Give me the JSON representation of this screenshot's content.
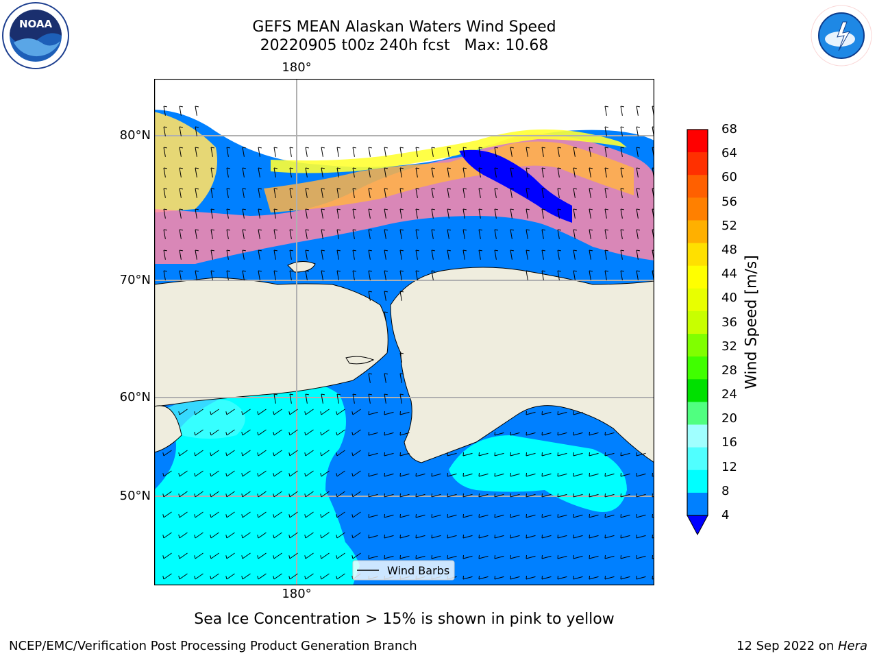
{
  "title": {
    "line1": "GEFS MEAN Alaskan Waters Wind Speed",
    "line2": "20220905 t00z 240h fcst   Max: 10.68"
  },
  "map": {
    "lon_labels": [
      "180°",
      "180°"
    ],
    "lat_labels": [
      "80°N",
      "70°N",
      "60°N",
      "50°N"
    ],
    "legend_label": "Wind Barbs",
    "colors": {
      "land": "#efedde",
      "ocean_4_8": "#0080ff",
      "ocean_8_12": "#00ffff",
      "ocean_12_16": "#4dffff",
      "below_4": "#0000ff",
      "ice_low": "#ff66cc",
      "ice_mid": "#ffb347",
      "ice_high": "#ffff33",
      "grid": "#b0b0b0"
    }
  },
  "colorbar": {
    "label": "Wind Speed [m/s]",
    "ticks": [
      "68",
      "64",
      "60",
      "56",
      "52",
      "48",
      "44",
      "40",
      "36",
      "32",
      "28",
      "24",
      "20",
      "16",
      "12",
      "8",
      "4"
    ],
    "colors": [
      "#ff0000",
      "#ff3000",
      "#ff6000",
      "#ff8000",
      "#ffb000",
      "#ffe000",
      "#ffff00",
      "#e8ff00",
      "#c8ff00",
      "#80ff00",
      "#40ff00",
      "#00e000",
      "#50ff80",
      "#a0ffff",
      "#50ffff",
      "#00ffff",
      "#0080ff"
    ],
    "extend_color": "#0000ff"
  },
  "note": "Sea Ice Concentration > 15% is shown in pink to yellow",
  "footer": {
    "left": "NCEP/EMC/Verification Post Processing Product Generation Branch",
    "right_date": "12 Sep 2022 on ",
    "right_host": "Hera"
  },
  "logos": {
    "noaa": "NOAA",
    "nws": "NATIONAL WEATHER SERVICE"
  }
}
